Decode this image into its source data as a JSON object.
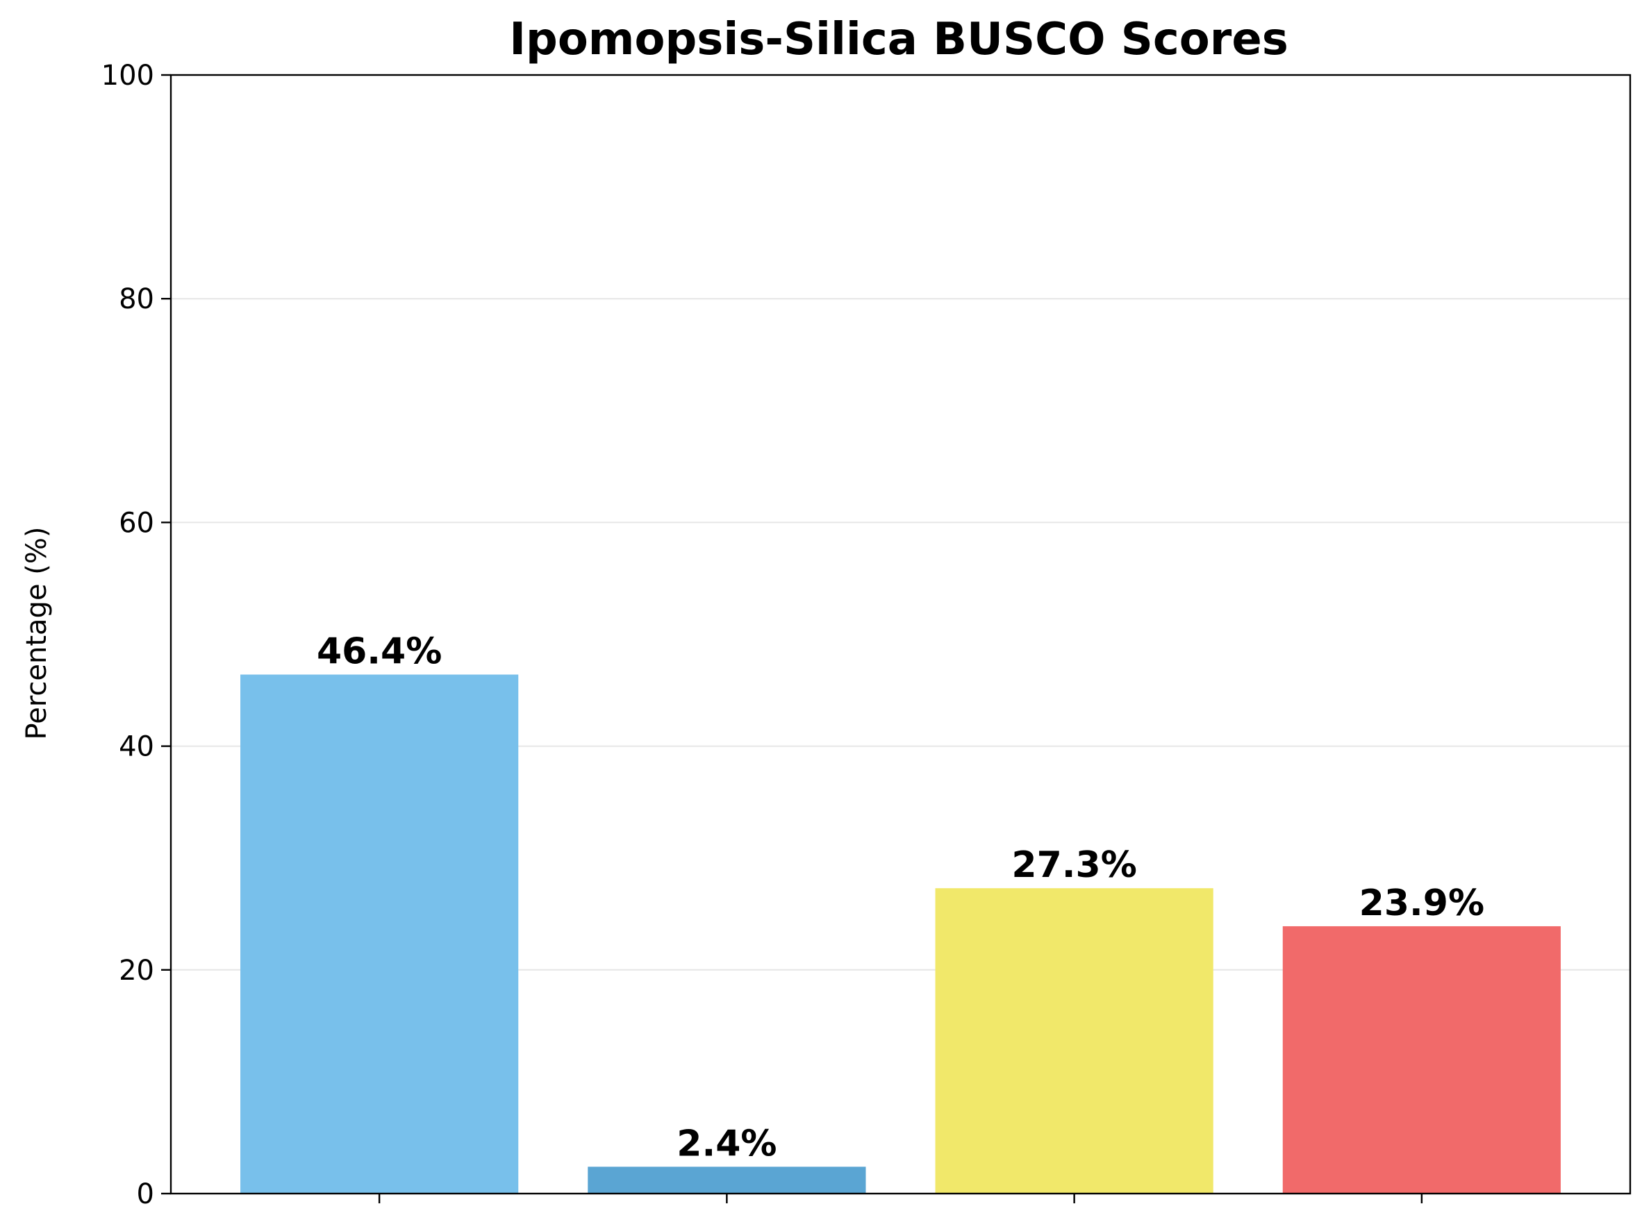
{
  "chart_data": {
    "type": "bar",
    "title": "Ipomopsis-Silica BUSCO Scores",
    "xlabel": "",
    "ylabel": "Percentage (%)",
    "ylim": [
      0,
      100
    ],
    "yticks": [
      0,
      20,
      40,
      60,
      80,
      100
    ],
    "grid": "y",
    "categories": [
      "",
      "",
      "",
      ""
    ],
    "values": [
      46.4,
      2.4,
      27.3,
      23.9
    ],
    "value_labels": [
      "46.4%",
      "2.4%",
      "27.3%",
      "23.9%"
    ],
    "colors": [
      "#78c0eb",
      "#5aa5d3",
      "#f1e86a",
      "#f16a6a"
    ]
  }
}
